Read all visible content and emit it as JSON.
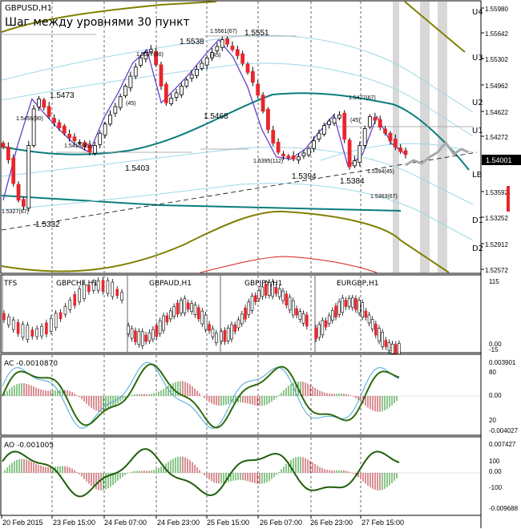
{
  "main": {
    "symbol": "GBPUSD,H1",
    "subtitle": "Шаг между уровнями 30 пункт",
    "price_axis": [
      "1.55980",
      "1.55642",
      "1.55302",
      "1.54962",
      "1.54622",
      "1.54272",
      "1.53592",
      "1.53252",
      "1.52912",
      "1.52572"
    ],
    "current_price": "1.54001",
    "level_labels": [
      "U4",
      "U3",
      "U2",
      "U1",
      "LB",
      "D1",
      "D2"
    ],
    "annotations": {
      "a1": "1.5473",
      "a2": "1.5456(90)",
      "a3": "1.5410(45)",
      "a4": "(45)",
      "a5": "1.5403",
      "a6": "1.5538",
      "a7": "1.5527(90)",
      "a8": "(45)",
      "a9": "1.5468",
      "a10": "1.5561(67)",
      "a11": "1.5551",
      "a12": "1.5395(112)",
      "a13": "1.5394",
      "a14": "1.5477(67)",
      "a15": "(45)",
      "a16": "1.5384",
      "a17": "1.5394(45)",
      "a18": "1.5363(67)",
      "a19": "1.5327(67)",
      "a20": "1.5332"
    }
  },
  "tfs": {
    "label": "TFS",
    "pairs": [
      "GBPCHF,H1",
      "GBPAUD,H1",
      "GBPJPY,H1",
      "EURGBP,H1"
    ],
    "axis_top": "115",
    "axis_zero": "0.00",
    "axis_bottom": "-15"
  },
  "ac": {
    "label": "AC -0.0010870",
    "axis": [
      "0.003901",
      "80",
      "0.00",
      "20",
      "-0.004027"
    ]
  },
  "ao": {
    "label": "AO -0.001005",
    "axis": [
      "0.007427",
      "100",
      "0.00",
      "-100",
      "-0.009688"
    ]
  },
  "time_axis": [
    "20 Feb 2015",
    "23 Feb 15:00",
    "24 Feb 07:00",
    "24 Feb 23:00",
    "25 Feb 15:00",
    "26 Feb 07:00",
    "26 Feb 23:00",
    "27 Feb 15:00"
  ],
  "chart_data": {
    "type": "candlestick",
    "title": "GBPUSD,H1",
    "ylim": [
      1.5245,
      1.5601
    ],
    "x": [
      "20 Feb 2015",
      "23 Feb 15:00",
      "24 Feb 07:00",
      "24 Feb 23:00",
      "25 Feb 15:00",
      "26 Feb 07:00",
      "26 Feb 23:00",
      "27 Feb 15:00"
    ],
    "anchors": [
      1.534,
      1.5412,
      1.5473,
      1.5451,
      1.5431,
      1.5413,
      1.5403,
      1.5448,
      1.5481,
      1.552,
      1.5538,
      1.5468,
      1.5487,
      1.5507,
      1.553,
      1.5551,
      1.5528,
      1.5489,
      1.5433,
      1.5397,
      1.5394,
      1.5407,
      1.543,
      1.5452,
      1.5384,
      1.54,
      1.545,
      1.5415,
      1.54
    ],
    "prices": [
      1.541,
      1.5393,
      1.5362,
      1.534,
      1.5332,
      1.5412,
      1.546,
      1.5473,
      1.5462,
      1.545,
      1.5442,
      1.5435,
      1.5428,
      1.5422,
      1.5418,
      1.5416,
      1.541,
      1.5403,
      1.5412,
      1.5428,
      1.544,
      1.5452,
      1.5463,
      1.5476,
      1.549,
      1.5503,
      1.5515,
      1.5527,
      1.5534,
      1.5538,
      1.5518,
      1.549,
      1.5468,
      1.5474,
      1.5481,
      1.549,
      1.5498,
      1.5505,
      1.5512,
      1.552,
      1.5527,
      1.5534,
      1.5542,
      1.5551,
      1.5545,
      1.5538,
      1.553,
      1.552,
      1.5508,
      1.5495,
      1.5478,
      1.5457,
      1.5433,
      1.5415,
      1.5403,
      1.5398,
      1.5396,
      1.5394,
      1.5397,
      1.5402,
      1.5408,
      1.5418,
      1.5428,
      1.5438,
      1.5444,
      1.5448,
      1.5452,
      1.542,
      1.5384,
      1.5392,
      1.5412,
      1.5434,
      1.545,
      1.5445,
      1.5436,
      1.5428,
      1.5418,
      1.541,
      1.5404,
      1.54
    ],
    "envelope_levels": [
      "U4",
      "U3",
      "U2",
      "U1",
      "LB",
      "D1",
      "D2"
    ]
  }
}
